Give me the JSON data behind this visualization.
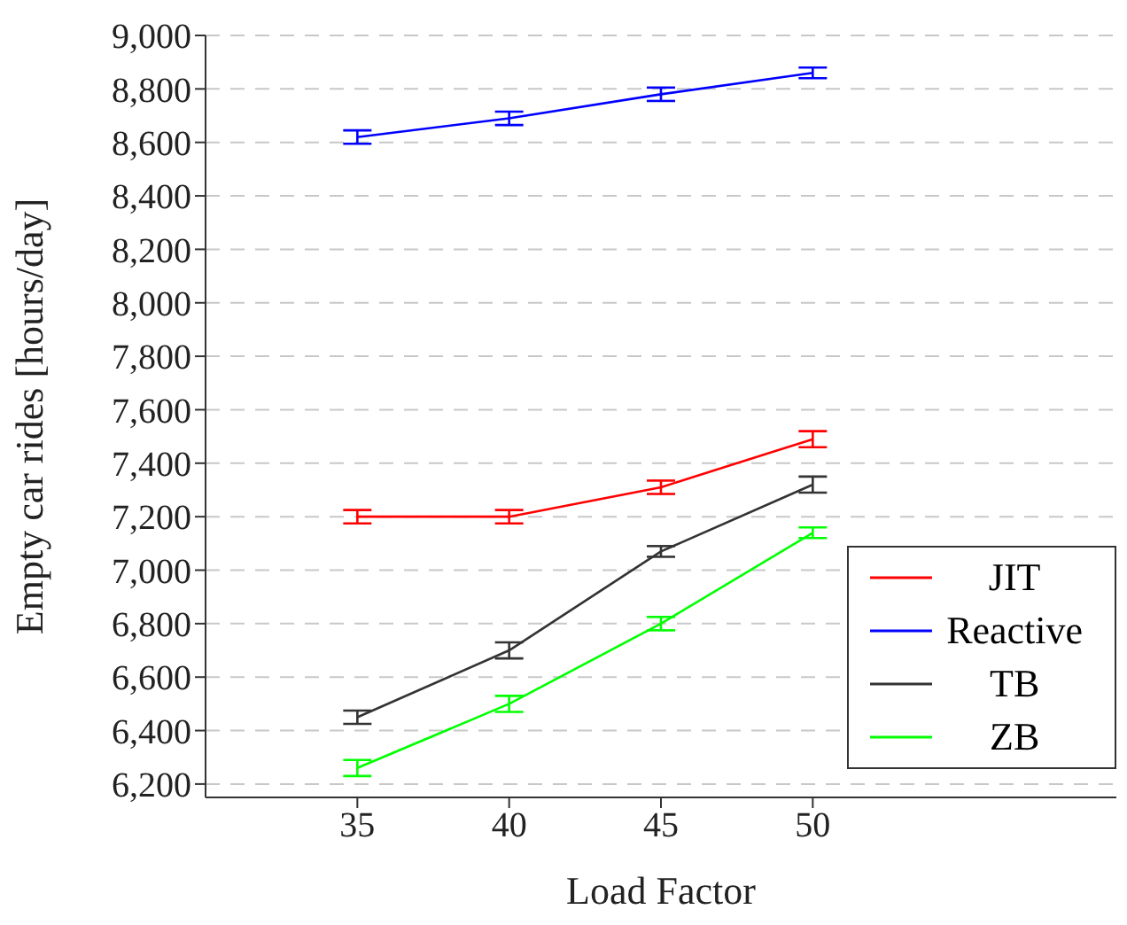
{
  "chart_data": {
    "type": "line",
    "xlabel": "Load Factor",
    "ylabel": "Empty car rides [hours/day]",
    "x": [
      35,
      40,
      45,
      50
    ],
    "series": [
      {
        "name": "JIT",
        "color": "#ff0000",
        "values": [
          7200,
          7200,
          7310,
          7490
        ],
        "errors": [
          25,
          25,
          25,
          30
        ]
      },
      {
        "name": "Reactive",
        "color": "#0000ff",
        "values": [
          8620,
          8690,
          8780,
          8860
        ],
        "errors": [
          25,
          25,
          25,
          20
        ]
      },
      {
        "name": "TB",
        "color": "#333333",
        "values": [
          6450,
          6700,
          7070,
          7320
        ],
        "errors": [
          25,
          30,
          20,
          30
        ]
      },
      {
        "name": "ZB",
        "color": "#00ff00",
        "values": [
          6260,
          6500,
          6800,
          7140
        ],
        "errors": [
          30,
          30,
          25,
          20
        ]
      }
    ],
    "xlim": [
      30,
      60
    ],
    "xticks": [
      35,
      40,
      45,
      50
    ],
    "ylim": [
      6150,
      9000
    ],
    "yticks": [
      {
        "value": 6200,
        "label": "6,200"
      },
      {
        "value": 6400,
        "label": "6,400"
      },
      {
        "value": 6600,
        "label": "6,600"
      },
      {
        "value": 6800,
        "label": "6,800"
      },
      {
        "value": 7000,
        "label": "7,000"
      },
      {
        "value": 7200,
        "label": "7,200"
      },
      {
        "value": 7400,
        "label": "7,400"
      },
      {
        "value": 7600,
        "label": "7,600"
      },
      {
        "value": 7800,
        "label": "7,800"
      },
      {
        "value": 8000,
        "label": "8,000"
      },
      {
        "value": 8200,
        "label": "8,200"
      },
      {
        "value": 8400,
        "label": "8,400"
      },
      {
        "value": 8600,
        "label": "8,600"
      },
      {
        "value": 8800,
        "label": "8,800"
      },
      {
        "value": 9000,
        "label": "9,000"
      }
    ],
    "grid": "y",
    "legend": "bottom right",
    "marker": "none",
    "line_style": "solid"
  }
}
